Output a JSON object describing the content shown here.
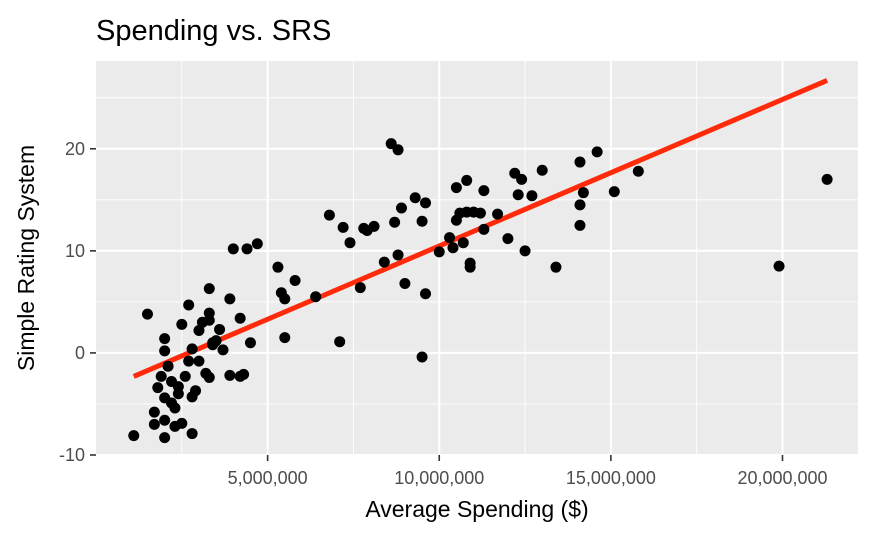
{
  "chart_data": {
    "type": "scatter",
    "title": "Spending vs. SRS",
    "xlabel": "Average Spending ($)",
    "ylabel": "Simple Rating System",
    "xlim": [
      0,
      22200000
    ],
    "ylim": [
      -10,
      28.6
    ],
    "x_ticks": [
      5000000,
      10000000,
      15000000,
      20000000
    ],
    "x_tick_labels": [
      "5,000,000",
      "10,000,000",
      "15,000,000",
      "20,000,000"
    ],
    "x_minor_ticks": [
      2500000,
      7500000,
      12500000,
      17500000
    ],
    "y_ticks": [
      -10,
      0,
      10,
      20
    ],
    "y_tick_labels": [
      "-10",
      "0",
      "10",
      "20"
    ],
    "y_minor_ticks": [
      -5,
      5,
      15,
      25
    ],
    "grid": true,
    "colors": {
      "panel": "#ebebeb",
      "grid": "#ffffff",
      "points": "#000000",
      "fit_line": "#ff2a0a"
    },
    "points": [
      [
        1100000,
        -8.1
      ],
      [
        1500000,
        3.8
      ],
      [
        1700000,
        -5.8
      ],
      [
        1800000,
        -3.4
      ],
      [
        1700000,
        -7
      ],
      [
        1900000,
        -2.3
      ],
      [
        2000000,
        -8.3
      ],
      [
        2000000,
        -6.6
      ],
      [
        2000000,
        -4.4
      ],
      [
        2000000,
        0.2
      ],
      [
        2000000,
        1.4
      ],
      [
        2100000,
        -1.3
      ],
      [
        2200000,
        -2.8
      ],
      [
        2200000,
        -4.9
      ],
      [
        2300000,
        -7.2
      ],
      [
        2300000,
        -5.4
      ],
      [
        2400000,
        -4
      ],
      [
        2400000,
        -3.3
      ],
      [
        2500000,
        -6.9
      ],
      [
        2500000,
        2.8
      ],
      [
        2600000,
        -2.3
      ],
      [
        2700000,
        -0.8
      ],
      [
        2700000,
        4.7
      ],
      [
        2800000,
        -4.3
      ],
      [
        2800000,
        -7.9
      ],
      [
        2800000,
        0.4
      ],
      [
        2900000,
        -3.7
      ],
      [
        3000000,
        2.2
      ],
      [
        3000000,
        -0.8
      ],
      [
        3100000,
        3
      ],
      [
        3200000,
        -2
      ],
      [
        3300000,
        6.3
      ],
      [
        3300000,
        3.9
      ],
      [
        3300000,
        -2.4
      ],
      [
        3300000,
        3.2
      ],
      [
        3400000,
        0.8
      ],
      [
        3400000,
        1
      ],
      [
        3500000,
        1.2
      ],
      [
        3600000,
        2.3
      ],
      [
        3700000,
        0.3
      ],
      [
        3900000,
        -2.2
      ],
      [
        3900000,
        5.3
      ],
      [
        4000000,
        10.2
      ],
      [
        4200000,
        3.4
      ],
      [
        4200000,
        -2.3
      ],
      [
        4300000,
        -2.1
      ],
      [
        4400000,
        10.2
      ],
      [
        4500000,
        1
      ],
      [
        4700000,
        10.7
      ],
      [
        5300000,
        8.4
      ],
      [
        5400000,
        5.9
      ],
      [
        5500000,
        5.3
      ],
      [
        5500000,
        1.5
      ],
      [
        5800000,
        7.1
      ],
      [
        6400000,
        5.5
      ],
      [
        6800000,
        13.5
      ],
      [
        7100000,
        1.1
      ],
      [
        7200000,
        12.3
      ],
      [
        7400000,
        10.8
      ],
      [
        7700000,
        6.4
      ],
      [
        7800000,
        12.2
      ],
      [
        7900000,
        12
      ],
      [
        8100000,
        12.4
      ],
      [
        8400000,
        8.9
      ],
      [
        8600000,
        20.5
      ],
      [
        8700000,
        12.8
      ],
      [
        8800000,
        19.9
      ],
      [
        8800000,
        9.6
      ],
      [
        8900000,
        14.2
      ],
      [
        9000000,
        6.8
      ],
      [
        9300000,
        15.2
      ],
      [
        9500000,
        -0.4
      ],
      [
        9500000,
        12.9
      ],
      [
        9600000,
        14.7
      ],
      [
        9600000,
        5.8
      ],
      [
        10000000,
        9.9
      ],
      [
        10300000,
        11.3
      ],
      [
        10400000,
        10.3
      ],
      [
        10500000,
        13
      ],
      [
        10500000,
        16.2
      ],
      [
        10600000,
        13.7
      ],
      [
        10700000,
        10.8
      ],
      [
        10800000,
        16.9
      ],
      [
        10800000,
        13.8
      ],
      [
        10900000,
        8.8
      ],
      [
        10900000,
        8.4
      ],
      [
        11000000,
        13.8
      ],
      [
        11200000,
        13.7
      ],
      [
        11300000,
        12.1
      ],
      [
        11300000,
        15.9
      ],
      [
        11700000,
        13.6
      ],
      [
        12000000,
        11.2
      ],
      [
        12200000,
        17.6
      ],
      [
        12300000,
        15.5
      ],
      [
        12400000,
        17
      ],
      [
        12500000,
        10
      ],
      [
        12700000,
        15.4
      ],
      [
        13000000,
        17.9
      ],
      [
        13400000,
        8.4
      ],
      [
        14100000,
        12.5
      ],
      [
        14100000,
        14.5
      ],
      [
        14200000,
        15.7
      ],
      [
        14100000,
        18.7
      ],
      [
        14600000,
        19.7
      ],
      [
        15100000,
        15.8
      ],
      [
        15800000,
        17.8
      ],
      [
        19900000,
        8.5
      ],
      [
        21300000,
        17
      ]
    ],
    "fit_line": {
      "x": [
        1100000,
        21300000
      ],
      "y": [
        -2.3,
        26.7
      ]
    }
  }
}
